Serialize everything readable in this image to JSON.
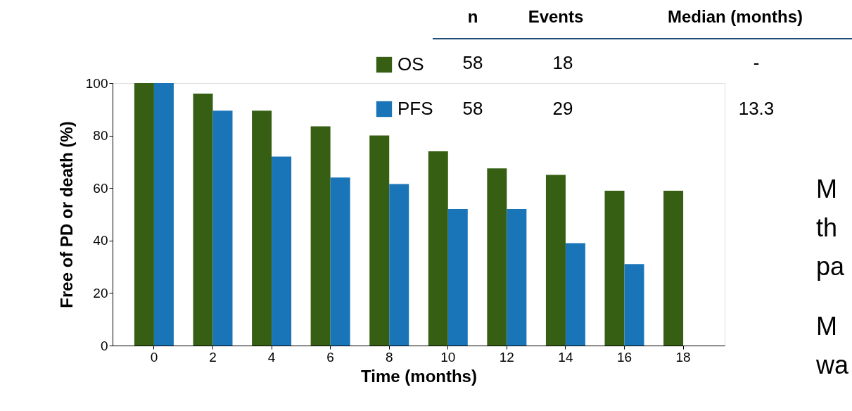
{
  "chart_data": {
    "type": "bar",
    "xlabel": "Time (months)",
    "ylabel": "Free of PD or death (%)",
    "categories": [
      "0",
      "2",
      "4",
      "6",
      "8",
      "10",
      "12",
      "14",
      "16",
      "18"
    ],
    "series": [
      {
        "name": "OS",
        "color": "#375f14",
        "values": [
          100,
          96,
          89.5,
          83.5,
          80,
          74,
          67.5,
          65,
          59,
          59
        ]
      },
      {
        "name": "PFS",
        "color": "#1a75b8",
        "values": [
          100,
          89.5,
          72,
          64,
          61.5,
          52,
          52,
          39,
          31,
          null
        ]
      }
    ],
    "ylim": [
      0,
      100
    ],
    "yticks": [
      0,
      20,
      40,
      60,
      80,
      100
    ],
    "grid": false,
    "legend": "top",
    "annotations": [
      "n",
      "Events",
      "Median (months)",
      "58",
      "18",
      "-",
      "58",
      "29",
      "13.3",
      "M",
      "th",
      "pa",
      "M",
      "wa"
    ]
  }
}
